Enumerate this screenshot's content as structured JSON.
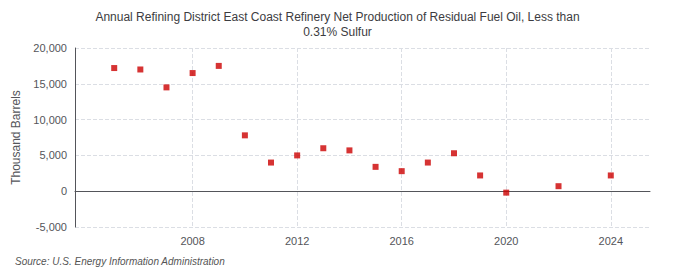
{
  "chart_data": {
    "type": "scatter",
    "title": "Annual Refining District East Coast Refinery Net Production of Residual Fuel Oil, Less than\n0.31% Sulfur",
    "ylabel": "Thousand Barrels",
    "source": "Source: U.S. Energy Information Administration",
    "x": [
      2005,
      2006,
      2007,
      2008,
      2009,
      2010,
      2011,
      2012,
      2013,
      2014,
      2015,
      2016,
      2017,
      2018,
      2019,
      2020,
      2022,
      2024
    ],
    "values": [
      17200,
      17000,
      14500,
      16500,
      17500,
      7800,
      4000,
      5000,
      6000,
      5700,
      3400,
      2800,
      4000,
      5300,
      2200,
      -200,
      700,
      2200
    ],
    "color": "#cc0000",
    "marker": "square",
    "xlim": [
      2003.5,
      2025.5
    ],
    "xticks": [
      2008,
      2012,
      2016,
      2020,
      2024
    ],
    "ylim": [
      -5000,
      20000
    ],
    "yticks": [
      {
        "value": -5000,
        "label": "-5,000"
      },
      0,
      {
        "value": 5000,
        "label": "5,000"
      },
      {
        "value": 10000,
        "label": "10,000"
      },
      {
        "value": 15000,
        "label": "15,000"
      },
      {
        "value": 20000,
        "label": "20,000"
      }
    ],
    "grid": true
  }
}
